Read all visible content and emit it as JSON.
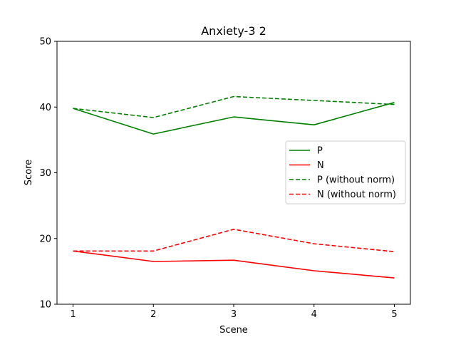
{
  "chart_data": {
    "type": "line",
    "title": "Anxiety-3 2",
    "xlabel": "Scene",
    "ylabel": "Score",
    "x": [
      1,
      2,
      3,
      4,
      5
    ],
    "xlim": [
      0.8,
      5.2
    ],
    "ylim": [
      10,
      50
    ],
    "xticks": [
      1,
      2,
      3,
      4,
      5
    ],
    "yticks": [
      10,
      20,
      30,
      40,
      50
    ],
    "grid": false,
    "legend_position": "center-right",
    "series": [
      {
        "name": "P",
        "values": [
          39.8,
          35.9,
          38.5,
          37.3,
          40.7
        ],
        "color": "#008000",
        "dash": "solid"
      },
      {
        "name": "N",
        "values": [
          18.1,
          16.5,
          16.7,
          15.1,
          14.0
        ],
        "color": "#ff0000",
        "dash": "solid"
      },
      {
        "name": "P (without norm)",
        "values": [
          39.8,
          38.4,
          41.6,
          41.0,
          40.4
        ],
        "color": "#008000",
        "dash": "dashed"
      },
      {
        "name": "N (without norm)",
        "values": [
          18.1,
          18.1,
          21.4,
          19.2,
          18.0
        ],
        "color": "#ff0000",
        "dash": "dashed"
      }
    ]
  }
}
